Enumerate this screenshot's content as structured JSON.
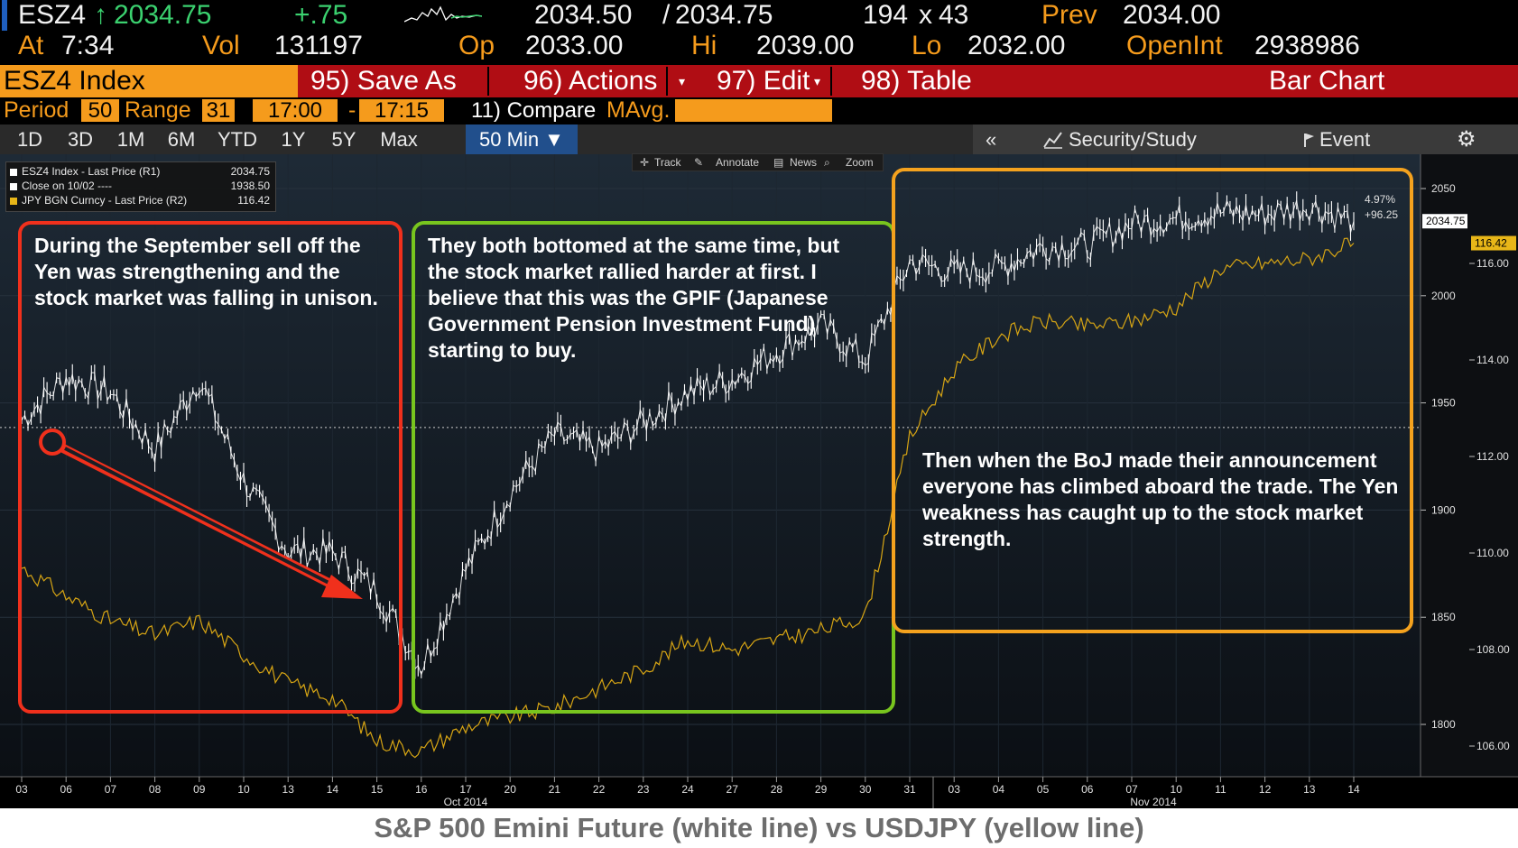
{
  "quote": {
    "ticker": "ESZ4",
    "arrow": "↑",
    "last": "2034.75",
    "change": "+.75",
    "bid": "2034.50",
    "slash": "/",
    "ask": "2034.75",
    "size_bid": "194",
    "size_x": "x",
    "size_ask": "43",
    "prev_label": "Prev",
    "prev": "2034.00",
    "at_label": "At",
    "time": "7:34",
    "vol_label": "Vol",
    "vol": "131197",
    "op_label": "Op",
    "open": "2033.00",
    "hi_label": "Hi",
    "high": "2039.00",
    "lo_label": "Lo",
    "low": "2032.00",
    "oi_label": "OpenInt",
    "open_interest": "2938986"
  },
  "toolbar": {
    "security": "ESZ4 Index",
    "save_as": "95) Save As",
    "actions": "96) Actions",
    "edit": "97) Edit",
    "table": "98) Table",
    "chart_type": "Bar Chart"
  },
  "params": {
    "period_label": "Period",
    "period": "50",
    "range_label": "Range",
    "range": "31",
    "start_time": "17:00",
    "dash": "-",
    "end_time": "17:15",
    "compare": "11) Compare",
    "mavg": "MAvg."
  },
  "tabs": [
    "1D",
    "3D",
    "1M",
    "6M",
    "YTD",
    "1Y",
    "5Y",
    "Max",
    "50 Min ▼"
  ],
  "right_bar": {
    "collapse": "«",
    "security_study": "Security/Study",
    "event": "Event"
  },
  "chart_tools": {
    "track": "Track",
    "annotate": "Annotate",
    "news": "News",
    "zoom": "Zoom"
  },
  "legend": [
    {
      "label": "ESZ4 Index - Last Price (R1)",
      "value": "2034.75",
      "color": "#ffffff"
    },
    {
      "label": "Close on 10/02 ----",
      "value": "1938.50",
      "color": "#ffffff"
    },
    {
      "label": "JPY BGN Curncy - Last Price (R2)",
      "value": "116.42",
      "color": "#e8b618"
    }
  ],
  "annotations": {
    "box1": "During the September sell off the Yen was strengthening and the stock market was falling in unison.",
    "box2": "They both bottomed at the same time, but the stock market rallied harder at first.  I believe that this was the GPIF (Japanese Government Pension Investment Fund) starting to buy.",
    "box3": "Then when the BoJ made their announcement everyone has climbed aboard the trade.  The Yen weakness has caught up to the stock market strength.",
    "pct": "4.97%",
    "chg": "+96.25"
  },
  "colors": {
    "red_box": "#f0301c",
    "green_box": "#78c51e",
    "orange_box": "#f4a21e",
    "sp_line": "#ffffff",
    "jpy_line": "#d7a514",
    "accent": "#f59b1c"
  },
  "caption": "S&P 500 Emini Future (white line) vs USDJPY (yellow line)",
  "chart_data": {
    "type": "line",
    "x": [
      "03",
      "06",
      "07",
      "08",
      "09",
      "10",
      "13",
      "14",
      "15",
      "16",
      "17",
      "20",
      "21",
      "22",
      "23",
      "24",
      "27",
      "28",
      "29",
      "30",
      "31",
      "03",
      "04",
      "05",
      "06",
      "07",
      "10",
      "11",
      "12",
      "13",
      "14"
    ],
    "x_month_labels": [
      "Oct 2014",
      "Nov 2014"
    ],
    "series": [
      {
        "axis": "R1",
        "values": [
          1942,
          1962,
          1955,
          1928,
          1961,
          1914,
          1881,
          1880,
          1862,
          1827,
          1872,
          1908,
          1935,
          1928,
          1941,
          1955,
          1961,
          1974,
          1986,
          1970,
          2016,
          2011,
          2013,
          2023,
          2023,
          2034,
          2036,
          2039,
          2038,
          2042,
          2034.75
        ]
      },
      {
        "axis": "R2",
        "values": [
          109.7,
          109.1,
          108.6,
          108.3,
          108.6,
          107.9,
          107.3,
          107.0,
          106.1,
          105.9,
          106.4,
          106.6,
          106.8,
          107.2,
          107.6,
          108.2,
          108.0,
          108.2,
          108.4,
          108.7,
          112.4,
          113.8,
          114.5,
          114.8,
          114.7,
          114.8,
          115.1,
          115.9,
          116.0,
          116.1,
          116.42
        ]
      }
    ],
    "y_right_ticks": [
      "2050",
      "2000",
      "1950",
      "1900",
      "1850",
      "1800"
    ],
    "y_left_ticks": [
      "116.00",
      "114.00",
      "112.00",
      "110.00",
      "108.00",
      "106.00"
    ],
    "ylim_r1": [
      1800,
      2050
    ],
    "ylim_r2": [
      105.0,
      117.0
    ],
    "current_r1": "2034.75",
    "current_r2": "116.42",
    "reference_close": 1938.5
  }
}
